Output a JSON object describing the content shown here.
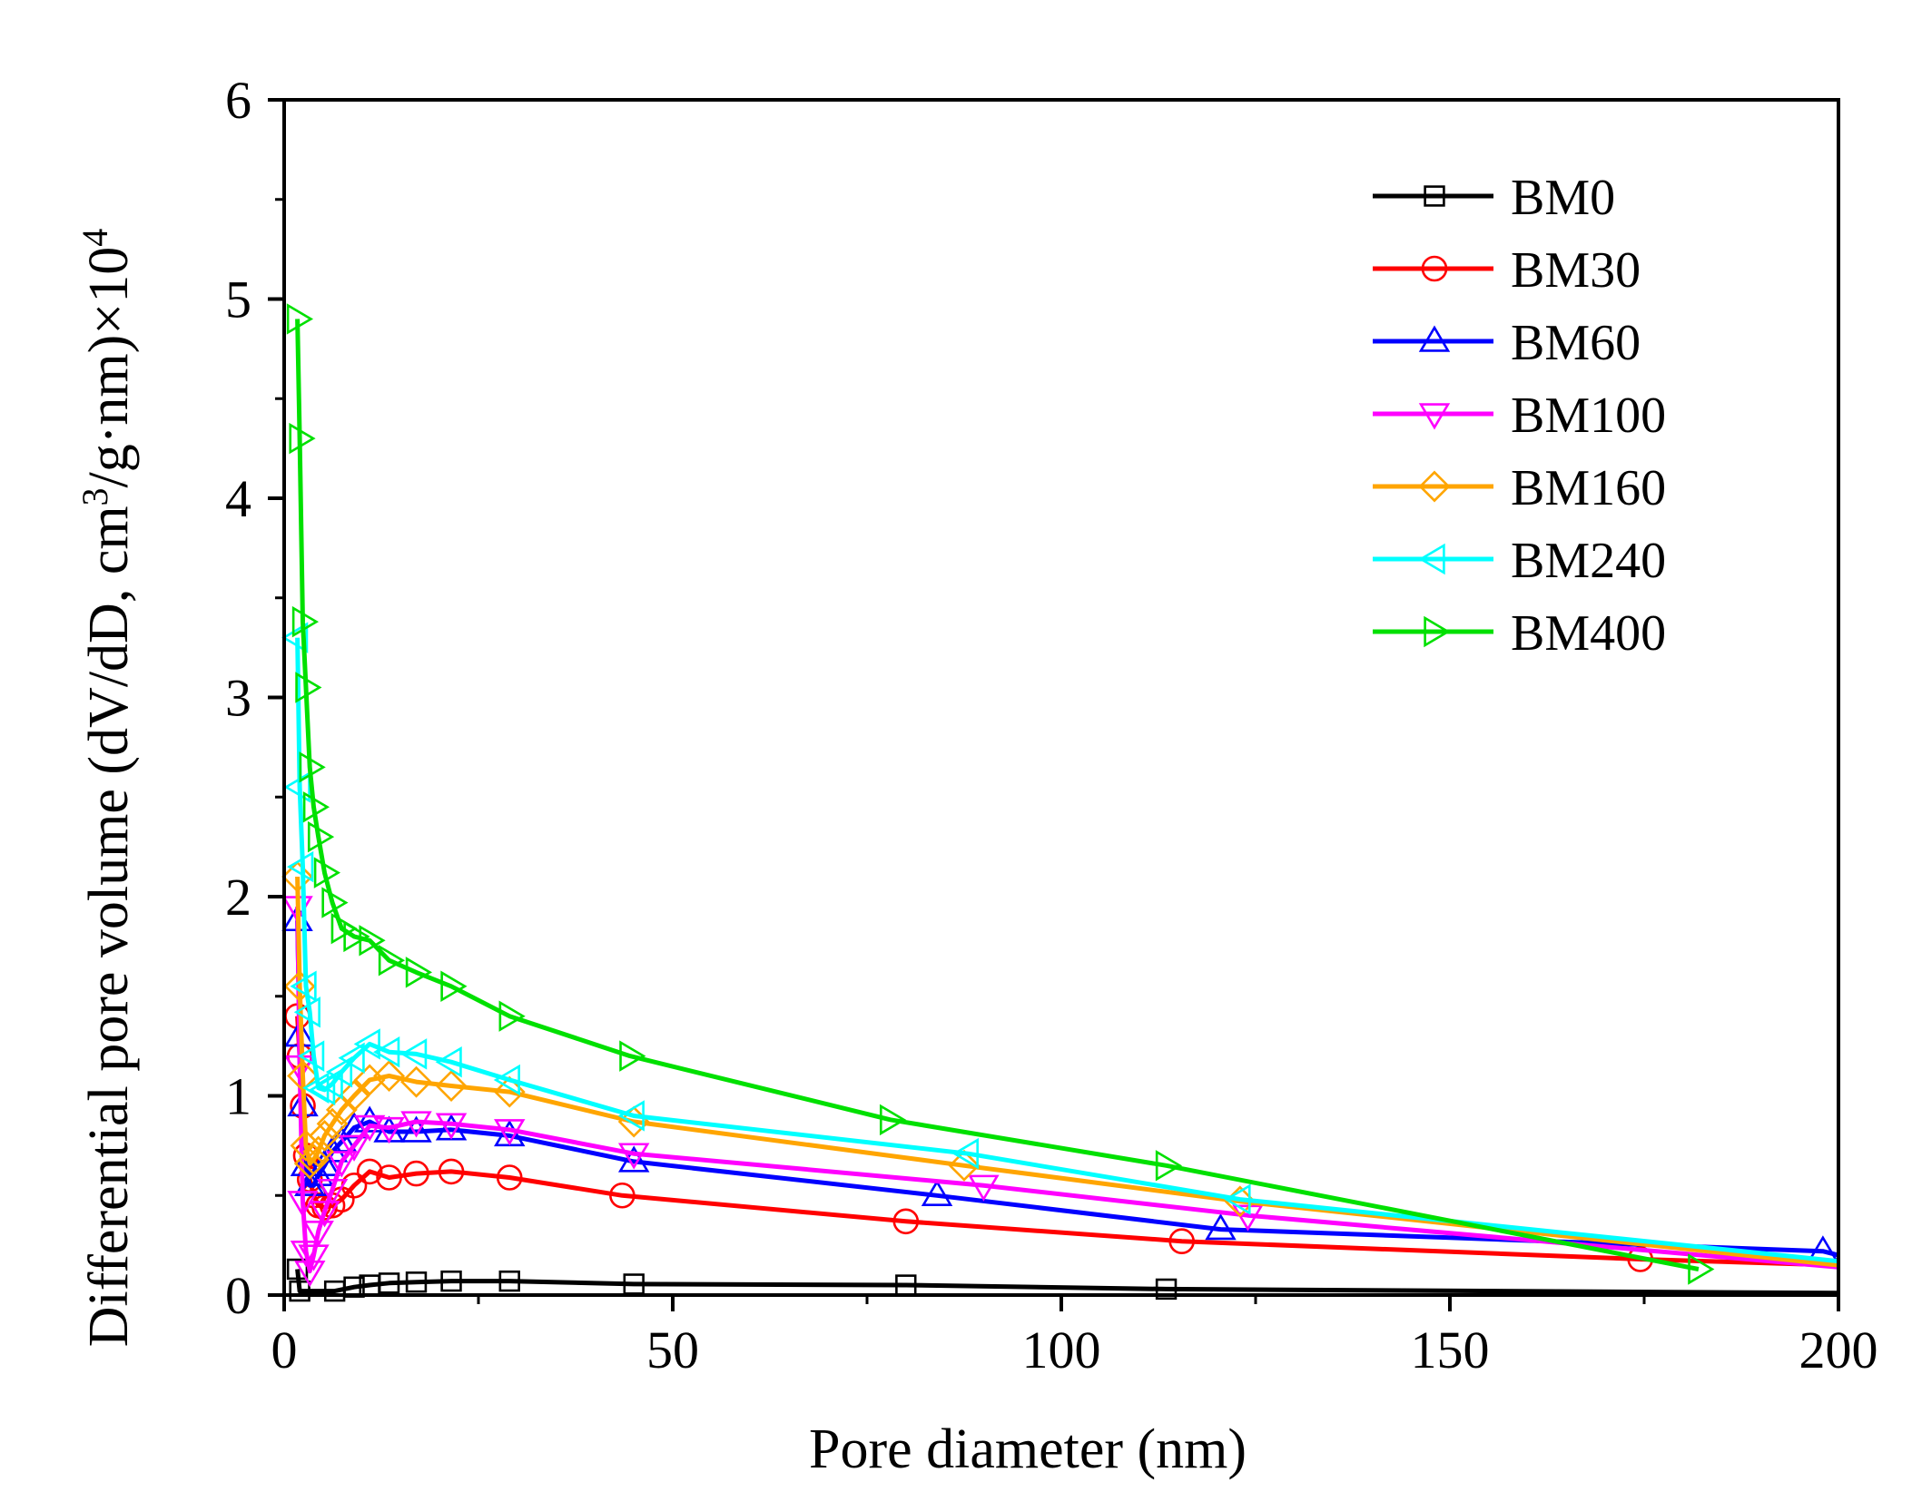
{
  "chart_data": {
    "type": "line",
    "title": "",
    "xlabel": "Pore diameter (nm)",
    "ylabel": {
      "main": "Differential pore volume (dV/dD, cm",
      "sup1": "3",
      "mid": "/g·nm)×10",
      "sup2": "4"
    },
    "xlim": [
      0,
      200
    ],
    "ylim": [
      0,
      6
    ],
    "xticks": [
      0,
      50,
      100,
      150,
      200
    ],
    "yticks": [
      0,
      1,
      2,
      3,
      4,
      5,
      6
    ],
    "xtick_labels": [
      "0",
      "50",
      "100",
      "150",
      "200"
    ],
    "ytick_labels": [
      "0",
      "1",
      "2",
      "3",
      "4",
      "5",
      "6"
    ],
    "legend_position": "top-right",
    "series": [
      {
        "name": "BM0",
        "color": "#000000",
        "marker": "square",
        "x": [
          1.7,
          2.0,
          6.5,
          9.0,
          11.0,
          13.5,
          17.0,
          21.5,
          29.0,
          45.0,
          80.0,
          113.5,
          200.0
        ],
        "y": [
          0.13,
          0.02,
          0.02,
          0.04,
          0.05,
          0.06,
          0.065,
          0.07,
          0.07,
          0.055,
          0.05,
          0.03,
          0.01
        ]
      },
      {
        "name": "BM30",
        "color": "#ff0000",
        "marker": "circle",
        "x": [
          1.7,
          2.0,
          2.4,
          2.8,
          3.3,
          3.8,
          4.4,
          5.2,
          6.2,
          7.4,
          9.0,
          11.0,
          13.5,
          17.0,
          21.5,
          29.0,
          43.5,
          80.0,
          115.5,
          174.5,
          200.0
        ],
        "y": [
          1.4,
          1.2,
          0.95,
          0.7,
          0.58,
          0.5,
          0.45,
          0.44,
          0.45,
          0.48,
          0.55,
          0.62,
          0.59,
          0.61,
          0.62,
          0.59,
          0.5,
          0.37,
          0.27,
          0.18,
          0.15
        ]
      },
      {
        "name": "BM60",
        "color": "#0000ff",
        "marker": "triangle-up",
        "x": [
          1.7,
          2.0,
          2.4,
          2.8,
          3.3,
          3.8,
          4.4,
          5.2,
          6.2,
          7.4,
          9.0,
          11.0,
          13.5,
          17.0,
          21.5,
          29.0,
          45.0,
          84.0,
          120.5,
          198.0,
          200.0
        ],
        "y": [
          1.88,
          1.3,
          0.95,
          0.65,
          0.55,
          0.55,
          0.6,
          0.65,
          0.72,
          0.77,
          0.84,
          0.87,
          0.82,
          0.82,
          0.83,
          0.8,
          0.67,
          0.5,
          0.33,
          0.22,
          0.2
        ]
      },
      {
        "name": "BM100",
        "color": "#ff00ff",
        "marker": "triangle-down",
        "x": [
          1.7,
          2.0,
          2.4,
          2.8,
          3.3,
          3.8,
          4.4,
          5.2,
          6.2,
          7.4,
          9.0,
          11.0,
          13.5,
          17.0,
          21.5,
          29.0,
          45.0,
          90.0,
          124.0,
          200.0
        ],
        "y": [
          1.95,
          1.15,
          0.47,
          0.22,
          0.12,
          0.2,
          0.32,
          0.42,
          0.53,
          0.67,
          0.75,
          0.85,
          0.84,
          0.87,
          0.86,
          0.83,
          0.71,
          0.55,
          0.4,
          0.14
        ]
      },
      {
        "name": "BM160",
        "color": "#ffa500",
        "marker": "diamond",
        "x": [
          1.7,
          2.0,
          2.4,
          2.8,
          3.3,
          3.8,
          4.4,
          5.2,
          6.2,
          7.4,
          9.0,
          11.0,
          13.5,
          17.0,
          21.5,
          29.0,
          45.0,
          87.5,
          123.0,
          200.0
        ],
        "y": [
          2.1,
          1.55,
          1.1,
          0.75,
          0.66,
          0.68,
          0.72,
          0.8,
          0.86,
          0.93,
          1.0,
          1.08,
          1.1,
          1.07,
          1.05,
          1.02,
          0.87,
          0.65,
          0.47,
          0.15
        ]
      },
      {
        "name": "BM240",
        "color": "#00ffff",
        "marker": "triangle-left",
        "x": [
          1.7,
          2.0,
          2.4,
          2.8,
          3.3,
          3.8,
          4.4,
          5.2,
          6.2,
          7.4,
          9.0,
          11.0,
          13.5,
          17.0,
          21.5,
          29.0,
          45.0,
          88.0,
          123.0,
          200.0
        ],
        "y": [
          3.3,
          2.55,
          2.15,
          1.55,
          1.42,
          1.2,
          1.04,
          1.03,
          1.06,
          1.12,
          1.19,
          1.26,
          1.22,
          1.21,
          1.17,
          1.08,
          0.9,
          0.71,
          0.48,
          0.17
        ]
      },
      {
        "name": "BM400",
        "color": "#00e000",
        "marker": "triangle-right",
        "x": [
          1.7,
          2.0,
          2.4,
          2.8,
          3.3,
          3.8,
          4.4,
          5.2,
          6.2,
          7.4,
          9.0,
          11.0,
          13.5,
          17.0,
          21.5,
          29.0,
          44.5,
          78.0,
          113.5,
          182.0
        ],
        "y": [
          4.9,
          4.3,
          3.38,
          3.05,
          2.65,
          2.45,
          2.3,
          2.12,
          1.97,
          1.84,
          1.8,
          1.78,
          1.68,
          1.62,
          1.55,
          1.4,
          1.2,
          0.88,
          0.65,
          0.13
        ]
      }
    ]
  }
}
